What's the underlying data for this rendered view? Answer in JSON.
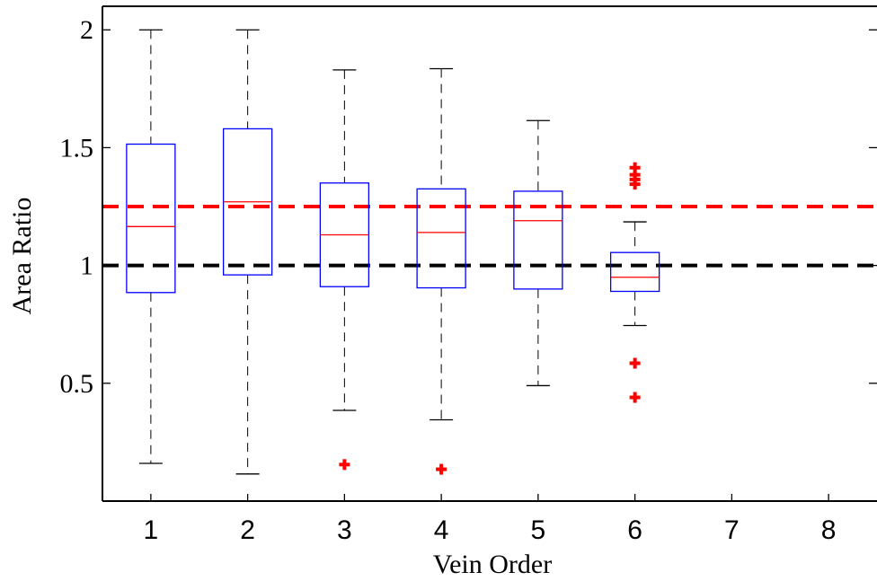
{
  "chart_data": {
    "type": "box",
    "title": "",
    "xlabel": "Vein Order",
    "ylabel": "Area Ratio",
    "xlim": [
      0.5,
      8.5
    ],
    "ylim": [
      0.0,
      2.1
    ],
    "xticks": [
      1,
      2,
      3,
      4,
      5,
      6,
      7,
      8
    ],
    "xtick_labels": [
      "1",
      "2",
      "3",
      "4",
      "5",
      "6",
      "7",
      "8"
    ],
    "yticks": [
      0.5,
      1,
      1.5,
      2
    ],
    "ytick_labels": [
      "0.5",
      "1",
      "1.5",
      "2"
    ],
    "grid": false,
    "colors": {
      "box": "#0000ff",
      "median": "#ff0000",
      "whisker": "#000000",
      "outlier": "#ff0000",
      "ref_red": "#ff0000",
      "ref_black": "#000000"
    },
    "reference_lines": [
      {
        "y": 1.25,
        "color": "#ff0000",
        "style": "dashed"
      },
      {
        "y": 1.0,
        "color": "#000000",
        "style": "dashed"
      }
    ],
    "boxes": [
      {
        "x": 1,
        "whisker_low": 0.16,
        "q1": 0.885,
        "median": 1.165,
        "q3": 1.515,
        "whisker_high": 2.0,
        "outliers": []
      },
      {
        "x": 2,
        "whisker_low": 0.115,
        "q1": 0.96,
        "median": 1.27,
        "q3": 1.58,
        "whisker_high": 2.0,
        "outliers": []
      },
      {
        "x": 3,
        "whisker_low": 0.385,
        "q1": 0.91,
        "median": 1.13,
        "q3": 1.35,
        "whisker_high": 1.83,
        "outliers": [
          0.155
        ]
      },
      {
        "x": 4,
        "whisker_low": 0.345,
        "q1": 0.905,
        "median": 1.14,
        "q3": 1.325,
        "whisker_high": 1.835,
        "outliers": [
          0.135
        ]
      },
      {
        "x": 5,
        "whisker_low": 0.49,
        "q1": 0.9,
        "median": 1.19,
        "q3": 1.315,
        "whisker_high": 1.615,
        "outliers": []
      },
      {
        "x": 6,
        "whisker_low": 0.745,
        "q1": 0.89,
        "median": 0.95,
        "q3": 1.055,
        "whisker_high": 1.185,
        "outliers": [
          1.415,
          1.385,
          1.365,
          1.345,
          0.585,
          0.44
        ]
      }
    ]
  }
}
